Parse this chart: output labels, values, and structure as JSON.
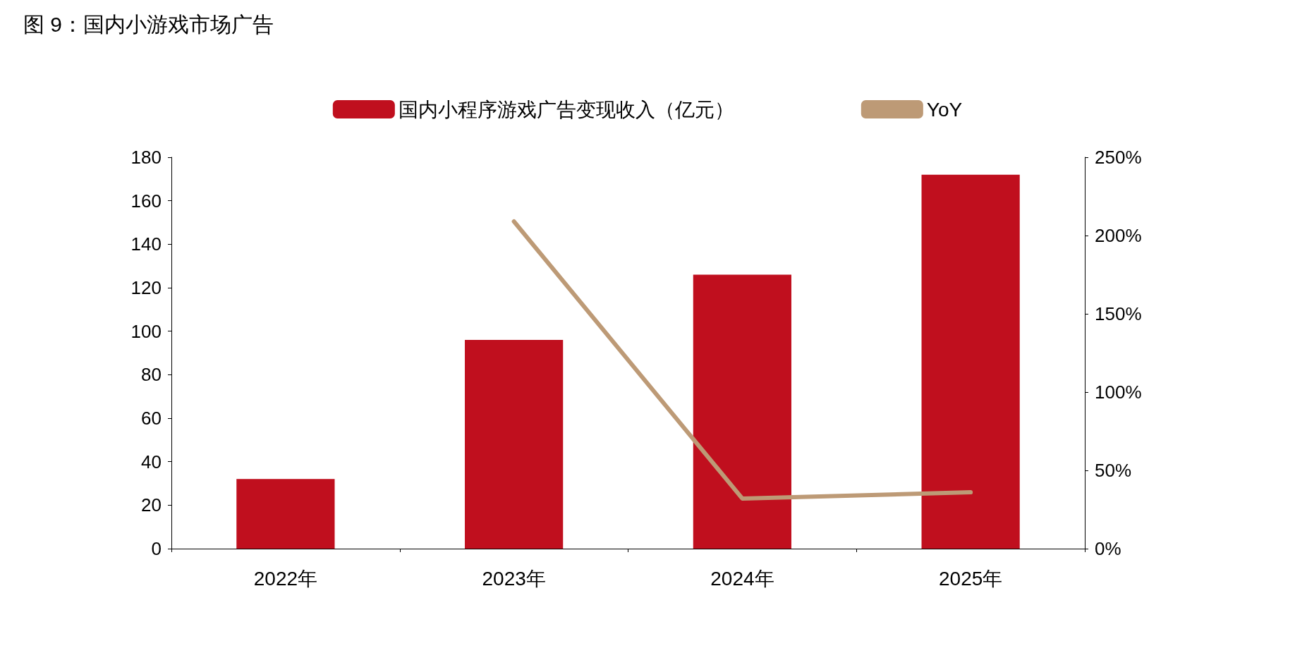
{
  "chart_data": {
    "type": "bar",
    "title": "图 9：国内小游戏市场广告",
    "categories": [
      "2022年",
      "2023年",
      "2024年",
      "2025年"
    ],
    "series": [
      {
        "name": "国内小程序游戏广告变现收入（亿元）",
        "color": "#c00f1e",
        "values": [
          32,
          96,
          126,
          172
        ]
      },
      {
        "name": "YoY",
        "type": "line",
        "axis": "y2",
        "color": "#bd9a76",
        "values": [
          null,
          209,
          32,
          36
        ]
      }
    ],
    "ylim": [
      0,
      180
    ],
    "yticks": [
      0,
      20,
      40,
      60,
      80,
      100,
      120,
      140,
      160,
      180
    ],
    "y2lim": [
      0,
      250
    ],
    "y2ticks": [
      {
        "value": 0,
        "label": "0%"
      },
      {
        "value": 50,
        "label": "50%"
      },
      {
        "value": 100,
        "label": "100%"
      },
      {
        "value": 150,
        "label": "150%"
      },
      {
        "value": 200,
        "label": "200%"
      },
      {
        "value": 250,
        "label": "250%"
      }
    ],
    "grid": false,
    "legend": "top",
    "marker": "none",
    "line_style": "solid"
  }
}
